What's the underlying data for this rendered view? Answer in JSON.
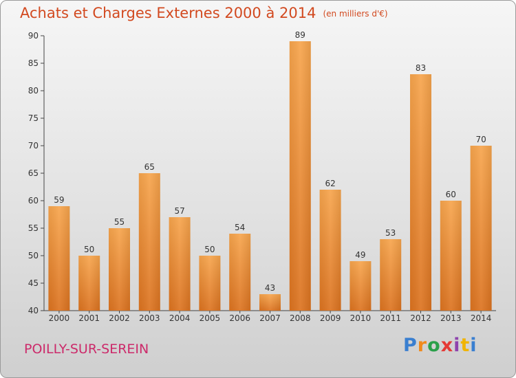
{
  "title": "Achats et Charges Externes 2000 à 2014",
  "unit": "(en milliers d'€)",
  "commune": "POILLY-SUR-SEREIN",
  "logo": {
    "letters": [
      "P",
      "r",
      "o",
      "x",
      "i",
      "t",
      "i"
    ],
    "colors": [
      "#3a7fd0",
      "#f08a1c",
      "#2aa04a",
      "#e53935",
      "#8e44ad",
      "#f0b400",
      "#3a7fd0"
    ]
  },
  "chart_data": {
    "type": "bar",
    "categories": [
      "2000",
      "2001",
      "2002",
      "2003",
      "2004",
      "2005",
      "2006",
      "2007",
      "2008",
      "2009",
      "2010",
      "2011",
      "2012",
      "2013",
      "2014"
    ],
    "values": [
      59,
      50,
      55,
      65,
      57,
      50,
      54,
      43,
      89,
      62,
      49,
      53,
      83,
      60,
      70
    ],
    "ylim": [
      40,
      90
    ],
    "yticks": [
      40,
      45,
      50,
      55,
      60,
      65,
      70,
      75,
      80,
      85,
      90
    ],
    "grid": false,
    "bar_color": "#f0922e"
  }
}
